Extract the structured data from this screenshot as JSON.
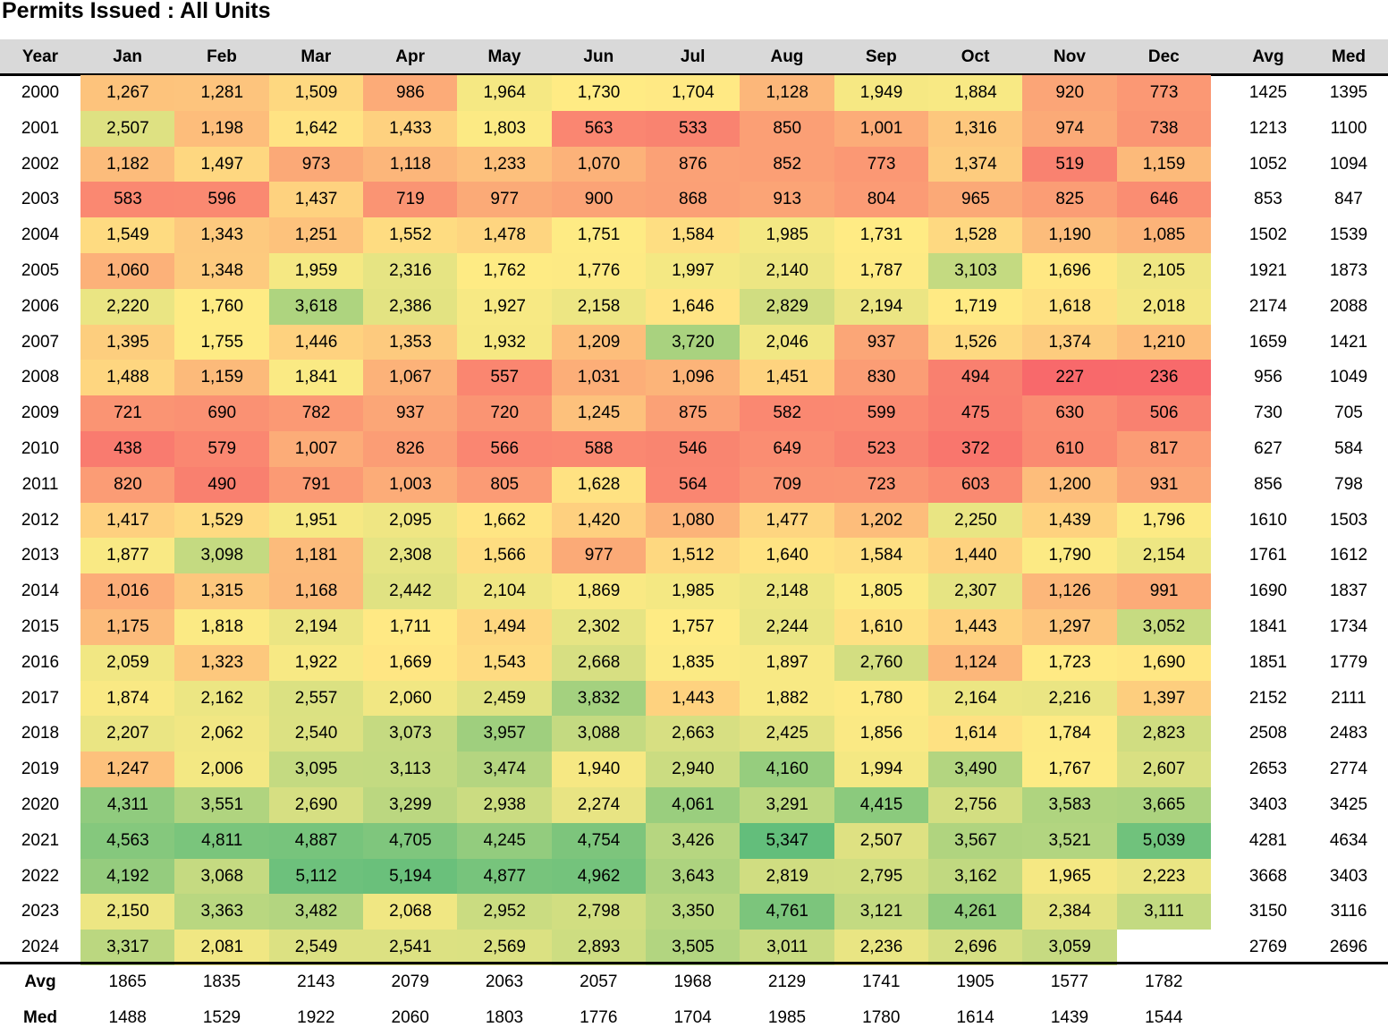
{
  "title": "Permits Issued : All Units",
  "headers": {
    "year": "Year",
    "months": [
      "Jan",
      "Feb",
      "Mar",
      "Apr",
      "May",
      "Jun",
      "Jul",
      "Aug",
      "Sep",
      "Oct",
      "Nov",
      "Dec"
    ],
    "avg": "Avg",
    "med": "Med"
  },
  "color_scale": {
    "low": "#f8696b",
    "mid": "#ffeb84",
    "high": "#63be7b"
  },
  "chart_data": {
    "type": "heatmap",
    "title": "Permits Issued : All Units",
    "columns": [
      "Jan",
      "Feb",
      "Mar",
      "Apr",
      "May",
      "Jun",
      "Jul",
      "Aug",
      "Sep",
      "Oct",
      "Nov",
      "Dec"
    ],
    "rows": [
      {
        "year": "2000",
        "values": [
          1267,
          1281,
          1509,
          986,
          1964,
          1730,
          1704,
          1128,
          1949,
          1884,
          920,
          773
        ],
        "avg": "1425",
        "med": "1395"
      },
      {
        "year": "2001",
        "values": [
          2507,
          1198,
          1642,
          1433,
          1803,
          563,
          533,
          850,
          1001,
          1316,
          974,
          738
        ],
        "avg": "1213",
        "med": "1100"
      },
      {
        "year": "2002",
        "values": [
          1182,
          1497,
          973,
          1118,
          1233,
          1070,
          876,
          852,
          773,
          1374,
          519,
          1159
        ],
        "avg": "1052",
        "med": "1094"
      },
      {
        "year": "2003",
        "values": [
          583,
          596,
          1437,
          719,
          977,
          900,
          868,
          913,
          804,
          965,
          825,
          646
        ],
        "avg": "853",
        "med": "847"
      },
      {
        "year": "2004",
        "values": [
          1549,
          1343,
          1251,
          1552,
          1478,
          1751,
          1584,
          1985,
          1731,
          1528,
          1190,
          1085
        ],
        "avg": "1502",
        "med": "1539"
      },
      {
        "year": "2005",
        "values": [
          1060,
          1348,
          1959,
          2316,
          1762,
          1776,
          1997,
          2140,
          1787,
          3103,
          1696,
          2105
        ],
        "avg": "1921",
        "med": "1873"
      },
      {
        "year": "2006",
        "values": [
          2220,
          1760,
          3618,
          2386,
          1927,
          2158,
          1646,
          2829,
          2194,
          1719,
          1618,
          2018
        ],
        "avg": "2174",
        "med": "2088"
      },
      {
        "year": "2007",
        "values": [
          1395,
          1755,
          1446,
          1353,
          1932,
          1209,
          3720,
          2046,
          937,
          1526,
          1374,
          1210
        ],
        "avg": "1659",
        "med": "1421"
      },
      {
        "year": "2008",
        "values": [
          1488,
          1159,
          1841,
          1067,
          557,
          1031,
          1096,
          1451,
          830,
          494,
          227,
          236
        ],
        "avg": "956",
        "med": "1049"
      },
      {
        "year": "2009",
        "values": [
          721,
          690,
          782,
          937,
          720,
          1245,
          875,
          582,
          599,
          475,
          630,
          506
        ],
        "avg": "730",
        "med": "705"
      },
      {
        "year": "2010",
        "values": [
          438,
          579,
          1007,
          826,
          566,
          588,
          546,
          649,
          523,
          372,
          610,
          817
        ],
        "avg": "627",
        "med": "584"
      },
      {
        "year": "2011",
        "values": [
          820,
          490,
          791,
          1003,
          805,
          1628,
          564,
          709,
          723,
          603,
          1200,
          931
        ],
        "avg": "856",
        "med": "798"
      },
      {
        "year": "2012",
        "values": [
          1417,
          1529,
          1951,
          2095,
          1662,
          1420,
          1080,
          1477,
          1202,
          2250,
          1439,
          1796
        ],
        "avg": "1610",
        "med": "1503"
      },
      {
        "year": "2013",
        "values": [
          1877,
          3098,
          1181,
          2308,
          1566,
          977,
          1512,
          1640,
          1584,
          1440,
          1790,
          2154
        ],
        "avg": "1761",
        "med": "1612"
      },
      {
        "year": "2014",
        "values": [
          1016,
          1315,
          1168,
          2442,
          2104,
          1869,
          1985,
          2148,
          1805,
          2307,
          1126,
          991
        ],
        "avg": "1690",
        "med": "1837"
      },
      {
        "year": "2015",
        "values": [
          1175,
          1818,
          2194,
          1711,
          1494,
          2302,
          1757,
          2244,
          1610,
          1443,
          1297,
          3052
        ],
        "avg": "1841",
        "med": "1734"
      },
      {
        "year": "2016",
        "values": [
          2059,
          1323,
          1922,
          1669,
          1543,
          2668,
          1835,
          1897,
          2760,
          1124,
          1723,
          1690
        ],
        "avg": "1851",
        "med": "1779"
      },
      {
        "year": "2017",
        "values": [
          1874,
          2162,
          2557,
          2060,
          2459,
          3832,
          1443,
          1882,
          1780,
          2164,
          2216,
          1397
        ],
        "avg": "2152",
        "med": "2111"
      },
      {
        "year": "2018",
        "values": [
          2207,
          2062,
          2540,
          3073,
          3957,
          3088,
          2663,
          2425,
          1856,
          1614,
          1784,
          2823
        ],
        "avg": "2508",
        "med": "2483"
      },
      {
        "year": "2019",
        "values": [
          1247,
          2006,
          3095,
          3113,
          3474,
          1940,
          2940,
          4160,
          1994,
          3490,
          1767,
          2607
        ],
        "avg": "2653",
        "med": "2774"
      },
      {
        "year": "2020",
        "values": [
          4311,
          3551,
          2690,
          3299,
          2938,
          2274,
          4061,
          3291,
          4415,
          2756,
          3583,
          3665
        ],
        "avg": "3403",
        "med": "3425"
      },
      {
        "year": "2021",
        "values": [
          4563,
          4811,
          4887,
          4705,
          4245,
          4754,
          3426,
          5347,
          2507,
          3567,
          3521,
          5039
        ],
        "avg": "4281",
        "med": "4634"
      },
      {
        "year": "2022",
        "values": [
          4192,
          3068,
          5112,
          5194,
          4877,
          4962,
          3643,
          2819,
          2795,
          3162,
          1965,
          2223
        ],
        "avg": "3668",
        "med": "3403"
      },
      {
        "year": "2023",
        "values": [
          2150,
          3363,
          3482,
          2068,
          2952,
          2798,
          3350,
          4761,
          3121,
          4261,
          2384,
          3111
        ],
        "avg": "3150",
        "med": "3116"
      },
      {
        "year": "2024",
        "values": [
          3317,
          2081,
          2549,
          2541,
          2569,
          2893,
          3505,
          3011,
          2236,
          2696,
          3059,
          null
        ],
        "avg": "2769",
        "med": "2696"
      }
    ],
    "footer": {
      "avg_label": "Avg",
      "avg": [
        "1865",
        "1835",
        "2143",
        "2079",
        "2063",
        "2057",
        "1968",
        "2129",
        "1741",
        "1905",
        "1577",
        "1782"
      ],
      "med_label": "Med",
      "med": [
        "1488",
        "1529",
        "1922",
        "2060",
        "1803",
        "1776",
        "1704",
        "1985",
        "1780",
        "1614",
        "1439",
        "1544"
      ]
    }
  }
}
